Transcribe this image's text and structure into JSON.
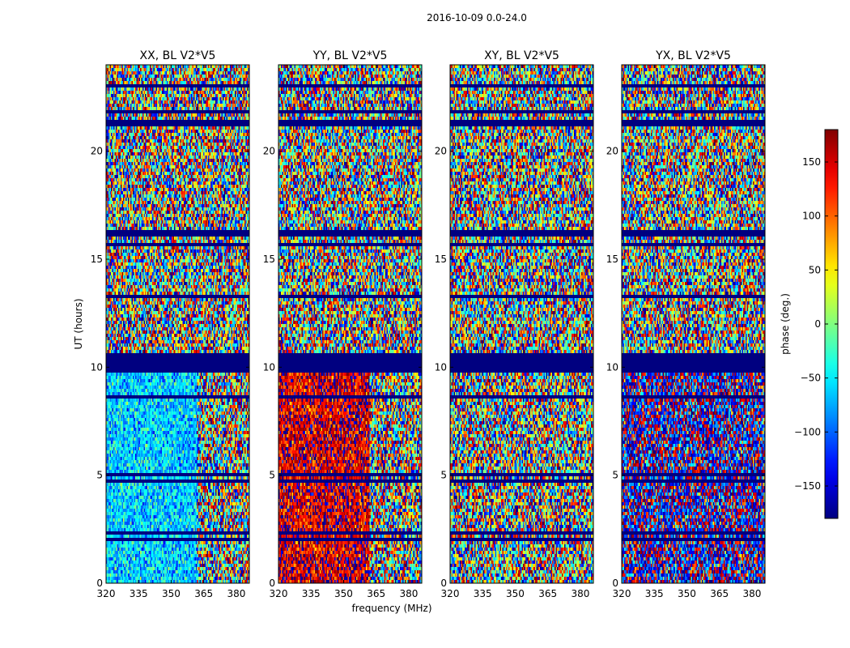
{
  "chart_data": {
    "type": "heatmap",
    "suptitle": "2016-10-09 0.0-24.0",
    "xlabel": "frequency (MHz)",
    "ylabel": "UT (hours)",
    "xlim": [
      320,
      386
    ],
    "ylim": [
      0,
      24
    ],
    "xticks": [
      320,
      335,
      350,
      365,
      380
    ],
    "yticks": [
      0,
      5,
      10,
      15,
      20
    ],
    "colorbar": {
      "label": "phase (deg.)",
      "range": [
        -180,
        180
      ],
      "ticks": [
        -150,
        -100,
        -50,
        0,
        50,
        100,
        150
      ],
      "colormap": "jet"
    },
    "panels": [
      {
        "title": "XX, BL V2*V5",
        "base_phase": -60,
        "noise_deg": 60,
        "coherent_ut_end": 10,
        "coherent_freq_end": 362
      },
      {
        "title": "YY, BL V2*V5",
        "base_phase": 150,
        "noise_deg": 70,
        "coherent_ut_end": 10,
        "coherent_freq_end": 362
      },
      {
        "title": "XY, BL V2*V5",
        "base_phase": 0,
        "noise_deg": 180,
        "coherent_ut_end": 0,
        "coherent_freq_end": 320
      },
      {
        "title": "YX, BL V2*V5",
        "base_phase": -150,
        "noise_deg": 120,
        "coherent_ut_end": 10,
        "coherent_freq_end": 386
      }
    ],
    "flagged_ut_bands": [
      [
        1.9,
        2.1
      ],
      [
        2.3,
        2.4
      ],
      [
        3.4,
        3.5
      ],
      [
        4.6,
        4.75
      ],
      [
        5.0,
        5.1
      ],
      [
        8.6,
        8.7
      ],
      [
        9.8,
        10.6
      ],
      [
        13.2,
        13.3
      ],
      [
        15.6,
        15.7
      ],
      [
        16.1,
        16.4
      ],
      [
        21.1,
        21.4
      ],
      [
        21.8,
        21.9
      ],
      [
        23.0,
        23.1
      ],
      [
        23.5,
        23.6
      ]
    ]
  }
}
